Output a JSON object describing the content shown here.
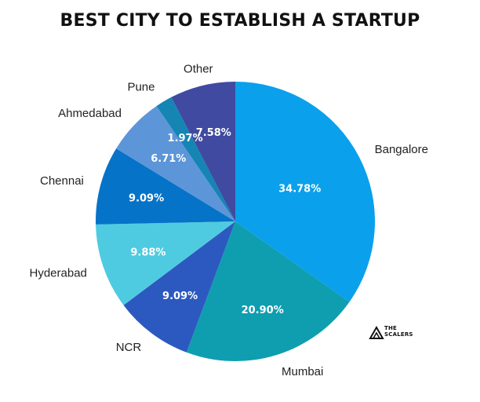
{
  "chart_data": {
    "type": "pie",
    "title": "BEST CITY TO ESTABLISH A STARTUP",
    "slices": [
      {
        "name": "Bangalore",
        "value": 34.78,
        "label": "34.78%",
        "color": "#0aa0ec"
      },
      {
        "name": "Mumbai",
        "value": 20.9,
        "label": "20.90%",
        "color": "#0e9eb0"
      },
      {
        "name": "NCR",
        "value": 9.09,
        "label": "9.09%",
        "color": "#2c59bf"
      },
      {
        "name": "Hyderabad",
        "value": 9.88,
        "label": "9.88%",
        "color": "#4ecbe1"
      },
      {
        "name": "Chennai",
        "value": 9.09,
        "label": "9.09%",
        "color": "#0573c8"
      },
      {
        "name": "Ahmedabad",
        "value": 6.71,
        "label": "6.71%",
        "color": "#5d95d9"
      },
      {
        "name": "Pune",
        "value": 1.97,
        "label": "1.97%",
        "color": "#1585b4"
      },
      {
        "name": "Other",
        "value": 7.58,
        "label": "7.58%",
        "color": "#3f4aa0"
      }
    ]
  },
  "logo": {
    "line1": "THE",
    "line2": "SCALERS",
    "icon": "scalers-logo-icon"
  }
}
